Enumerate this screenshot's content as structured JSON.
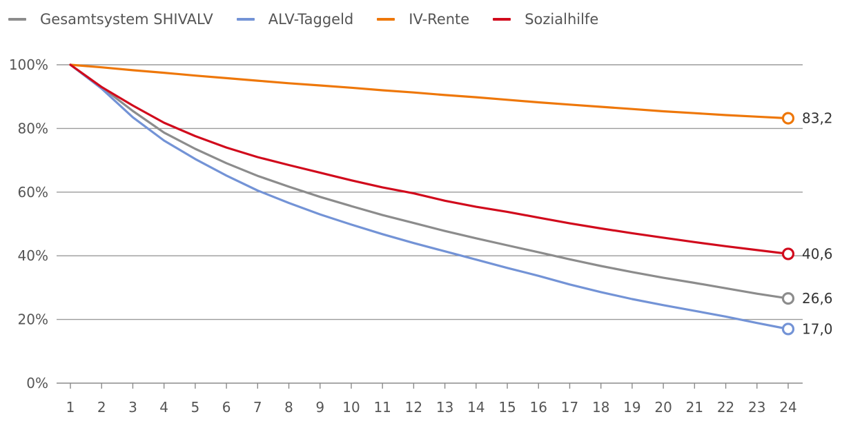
{
  "chart_data": {
    "type": "line",
    "title": "",
    "xlabel": "",
    "ylabel": "",
    "x": [
      1,
      2,
      3,
      4,
      5,
      6,
      7,
      8,
      9,
      10,
      11,
      12,
      13,
      14,
      15,
      16,
      17,
      18,
      19,
      20,
      21,
      22,
      23,
      24
    ],
    "ylim": [
      0,
      100
    ],
    "yticks": [
      0,
      20,
      40,
      60,
      80,
      100
    ],
    "ytick_labels": [
      "0%",
      "20%",
      "40%",
      "60%",
      "80%",
      "100%"
    ],
    "grid": true,
    "legend_position": "top-left",
    "series": [
      {
        "name": "Gesamtsystem SHIVALV",
        "color": "#8c8c8c",
        "values": [
          100,
          93,
          85.5,
          78.7,
          73.6,
          69.1,
          65.1,
          61.7,
          58.5,
          55.6,
          52.8,
          50.3,
          47.8,
          45.5,
          43.3,
          41.1,
          38.9,
          36.8,
          34.9,
          33.1,
          31.5,
          29.8,
          28.1,
          26.6
        ],
        "end_label": "26,6"
      },
      {
        "name": "ALV-Taggeld",
        "color": "#7393d6",
        "values": [
          100,
          92.5,
          83.5,
          76.2,
          70.4,
          65.2,
          60.5,
          56.6,
          53.0,
          49.8,
          46.8,
          44.0,
          41.4,
          38.8,
          36.2,
          33.7,
          31.0,
          28.6,
          26.4,
          24.5,
          22.7,
          20.9,
          18.9,
          17.0
        ],
        "end_label": "17,0"
      },
      {
        "name": "IV-Rente",
        "color": "#ee7709",
        "values": [
          100,
          99.2,
          98.3,
          97.5,
          96.6,
          95.8,
          95.0,
          94.2,
          93.5,
          92.8,
          92.0,
          91.3,
          90.5,
          89.8,
          89.0,
          88.2,
          87.5,
          86.8,
          86.1,
          85.4,
          84.8,
          84.2,
          83.7,
          83.2
        ],
        "end_label": "83,2"
      },
      {
        "name": "Sozialhilfe",
        "color": "#d10a1c",
        "values": [
          100,
          93.0,
          87.2,
          81.8,
          77.6,
          74.0,
          71.0,
          68.5,
          66.1,
          63.7,
          61.5,
          59.6,
          57.3,
          55.4,
          53.8,
          52.0,
          50.2,
          48.6,
          47.1,
          45.7,
          44.3,
          43.0,
          41.8,
          40.6
        ],
        "end_label": "40,6"
      }
    ]
  }
}
